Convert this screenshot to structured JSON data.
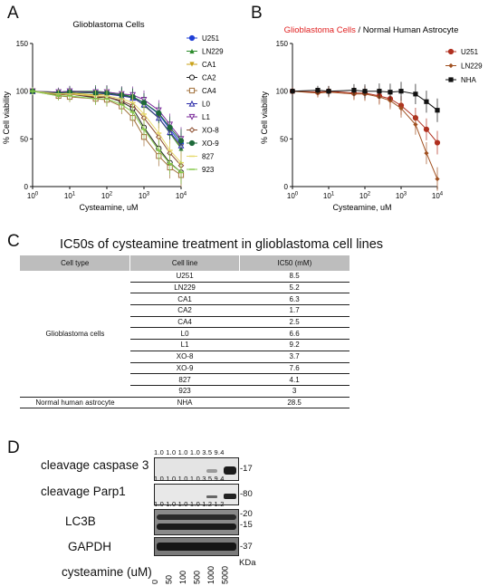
{
  "panels": {
    "A": "A",
    "B": "B",
    "C": "C",
    "D": "D"
  },
  "chart_data": [
    {
      "type": "line",
      "title": "Glioblastoma Cells",
      "xlabel": "Cysteamine, uM",
      "ylabel": "% Cell viability",
      "xscale": "log",
      "xlim": [
        1,
        10000
      ],
      "ylim": [
        0,
        150
      ],
      "xticks": [
        "10^0",
        "10^1",
        "10^2",
        "10^3",
        "10^4"
      ],
      "yticks": [
        "0",
        "50",
        "100",
        "150"
      ],
      "legend_position": "right",
      "x": [
        1,
        5,
        10,
        50,
        100,
        250,
        500,
        1000,
        2500,
        5000,
        10000
      ],
      "series": [
        {
          "name": "U251",
          "color": "#1f3fd6",
          "marker": "circle-filled",
          "values": [
            100,
            98,
            100,
            99,
            98,
            96,
            94,
            88,
            76,
            60,
            45
          ]
        },
        {
          "name": "LN229",
          "color": "#2a8a2a",
          "marker": "triangle-filled",
          "values": [
            100,
            99,
            100,
            100,
            99,
            97,
            94,
            85,
            72,
            56,
            40
          ]
        },
        {
          "name": "CA1",
          "color": "#c9a21a",
          "marker": "triangle-down",
          "values": [
            100,
            97,
            98,
            96,
            97,
            95,
            93,
            86,
            72,
            57,
            42
          ]
        },
        {
          "name": "CA2",
          "color": "#222222",
          "marker": "circle-open",
          "values": [
            100,
            96,
            97,
            93,
            94,
            89,
            82,
            62,
            40,
            25,
            15
          ]
        },
        {
          "name": "CA4",
          "color": "#a0703a",
          "marker": "square-open",
          "values": [
            100,
            95,
            94,
            92,
            91,
            84,
            72,
            52,
            32,
            20,
            12
          ]
        },
        {
          "name": "L0",
          "color": "#2a2aa8",
          "marker": "triangle-open",
          "values": [
            100,
            98,
            99,
            98,
            97,
            95,
            93,
            86,
            72,
            57,
            43
          ]
        },
        {
          "name": "L1",
          "color": "#7a2a9a",
          "marker": "triangle-down-open",
          "values": [
            100,
            99,
            100,
            99,
            99,
            97,
            96,
            91,
            80,
            65,
            50
          ]
        },
        {
          "name": "XO-8",
          "color": "#8a4a2a",
          "marker": "diamond-open",
          "values": [
            100,
            96,
            97,
            94,
            94,
            90,
            85,
            72,
            52,
            35,
            22
          ]
        },
        {
          "name": "XO-9",
          "color": "#1e6a3a",
          "marker": "circle-filled",
          "values": [
            100,
            98,
            99,
            98,
            98,
            96,
            94,
            88,
            77,
            62,
            48
          ]
        },
        {
          "name": "827",
          "color": "#e6d86a",
          "marker": "line",
          "values": [
            100,
            97,
            97,
            95,
            95,
            92,
            88,
            76,
            56,
            38,
            25
          ]
        },
        {
          "name": "923",
          "color": "#86c94a",
          "marker": "line",
          "values": [
            100,
            95,
            95,
            92,
            92,
            86,
            78,
            60,
            38,
            24,
            15
          ]
        }
      ]
    },
    {
      "type": "line",
      "title_parts": [
        "Glioblastoma Cells",
        " / Normal Human Astrocyte"
      ],
      "title_color": "#e02020",
      "xlabel": "Cysteamine, uM",
      "ylabel": "% Cell viability",
      "xscale": "log",
      "xlim": [
        1,
        10000
      ],
      "ylim": [
        0,
        150
      ],
      "xticks": [
        "10^0",
        "10^1",
        "10^2",
        "10^3",
        "10^4"
      ],
      "yticks": [
        "0",
        "50",
        "100",
        "150"
      ],
      "legend_position": "top-right",
      "x": [
        1,
        5,
        10,
        50,
        100,
        250,
        500,
        1000,
        2500,
        5000,
        10000
      ],
      "series": [
        {
          "name": "U251",
          "color": "#b03020",
          "marker": "circle-filled",
          "values": [
            100,
            99,
            100,
            98,
            98,
            95,
            92,
            85,
            72,
            60,
            46
          ]
        },
        {
          "name": "LN229",
          "color": "#a05020",
          "marker": "diamond-filled",
          "values": [
            100,
            98,
            99,
            97,
            97,
            94,
            90,
            82,
            65,
            35,
            8
          ]
        },
        {
          "name": "NHA",
          "color": "#111111",
          "marker": "square-filled",
          "values": [
            100,
            101,
            100,
            101,
            100,
            100,
            99,
            100,
            97,
            89,
            80
          ]
        }
      ]
    }
  ],
  "ic50_table": {
    "title": "IC50s of cysteamine treatment in glioblastoma cell lines",
    "headers": [
      "Cell type",
      "Cell line",
      "IC50 (mM)"
    ],
    "group1_label": "Glioblastoma cells",
    "group1_rows": [
      {
        "line": "U251",
        "ic50": "8.5"
      },
      {
        "line": "LN229",
        "ic50": "5.2"
      },
      {
        "line": "CA1",
        "ic50": "6.3"
      },
      {
        "line": "CA2",
        "ic50": "1.7"
      },
      {
        "line": "CA4",
        "ic50": "2.5"
      },
      {
        "line": "L0",
        "ic50": "6.6"
      },
      {
        "line": "L1",
        "ic50": "9.2"
      },
      {
        "line": "XO-8",
        "ic50": "3.7"
      },
      {
        "line": "XO-9",
        "ic50": "7.6"
      },
      {
        "line": "827",
        "ic50": "4.1"
      },
      {
        "line": "923",
        "ic50": "3"
      }
    ],
    "group2_label": "Normal human astrocyte",
    "group2_row": {
      "line": "NHA",
      "ic50": "28.5"
    }
  },
  "western_blot": {
    "labels": [
      "cleavage caspase 3",
      "cleavage Parp1",
      "LC3B",
      "GAPDH",
      "cysteamine (uM)"
    ],
    "quant_rows": [
      "1.0  1.0  1.0  1.0  3.5  9.4",
      "1.0  1.0  1.0  1.0  3.5  9.4",
      "1.0  1.0  1.0  1.0  1.2  1.2"
    ],
    "markers": [
      "-17",
      "-80",
      "-20",
      "-15",
      "-37"
    ],
    "kda_label": "KDa",
    "doses": [
      "0",
      "50",
      "100",
      "500",
      "1000",
      "5000"
    ]
  }
}
